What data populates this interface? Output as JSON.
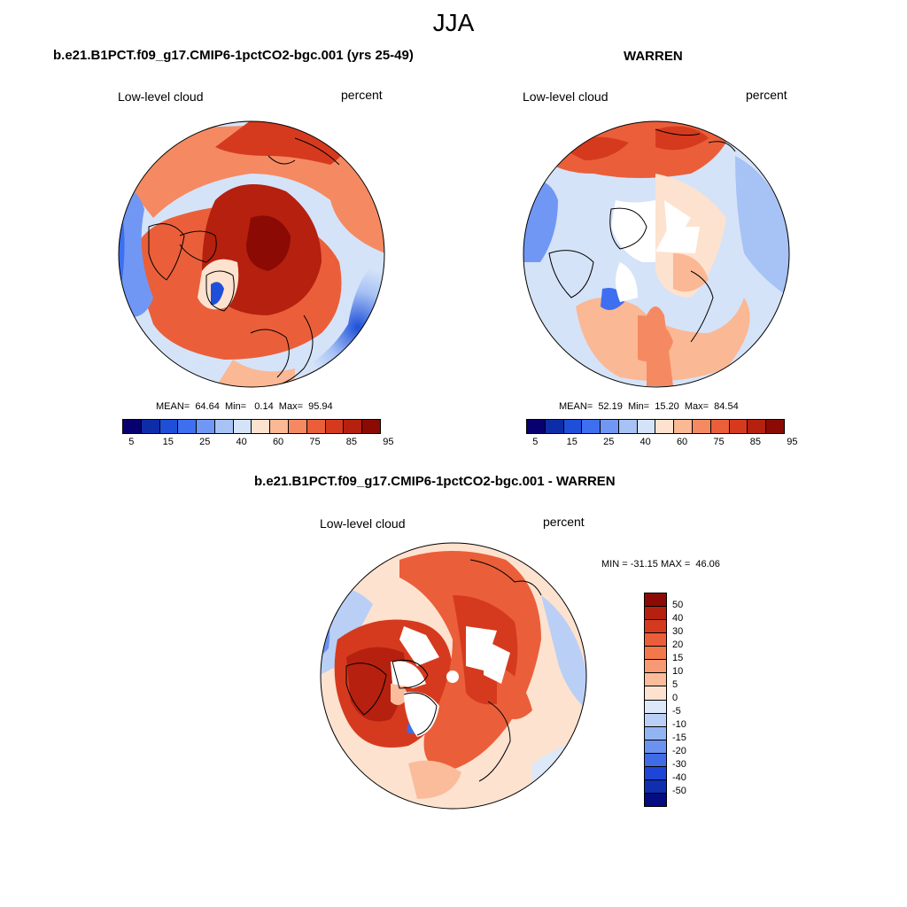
{
  "main_title": "JJA",
  "panels": [
    {
      "title": "b.e21.B1PCT.f09_g17.CMIP6-1pctCO2-bgc.001 (yrs 25-49)",
      "variable": "Low-level cloud",
      "units": "percent",
      "stats": "MEAN=  64.64  Min=   0.14  Max=  95.94",
      "colorbar_labels": [
        "5",
        "15",
        "25",
        "40",
        "60",
        "75",
        "85",
        "95"
      ]
    },
    {
      "title": "WARREN",
      "variable": "Low-level cloud",
      "units": "percent",
      "stats": "MEAN=  52.19  Min=  15.20  Max=  84.54",
      "colorbar_labels": [
        "5",
        "15",
        "25",
        "40",
        "60",
        "75",
        "85",
        "95"
      ]
    },
    {
      "title": "b.e21.B1PCT.f09_g17.CMIP6-1pctCO2-bgc.001 - WARREN",
      "variable": "Low-level cloud",
      "units": "percent",
      "stats": "MIN = -31.15 MAX =  46.06",
      "colorbar_labels": [
        "50",
        "40",
        "30",
        "20",
        "15",
        "10",
        "5",
        "0",
        "-5",
        "-10",
        "-15",
        "-20",
        "-30",
        "-40",
        "-50"
      ]
    }
  ],
  "colors": {
    "abs_scale": [
      "#08006f",
      "#0d2ca8",
      "#1f4fd9",
      "#3d6ff0",
      "#7197f5",
      "#a7c2f5",
      "#d5e3f8",
      "#fde2cf",
      "#fbb894",
      "#f58a62",
      "#ea5f3a",
      "#d63a1e",
      "#b5200f",
      "#8c0a04"
    ],
    "diff_scale": [
      "#8c0a04",
      "#b5200f",
      "#d63a1e",
      "#ea5f3a",
      "#f2784c",
      "#f79a74",
      "#fbbc9c",
      "#fde2cf",
      "#dde8f8",
      "#b9cff6",
      "#93b4f3",
      "#6b92ee",
      "#3f6be6",
      "#1f45d6",
      "#0f2fb0",
      "#050b80"
    ]
  }
}
